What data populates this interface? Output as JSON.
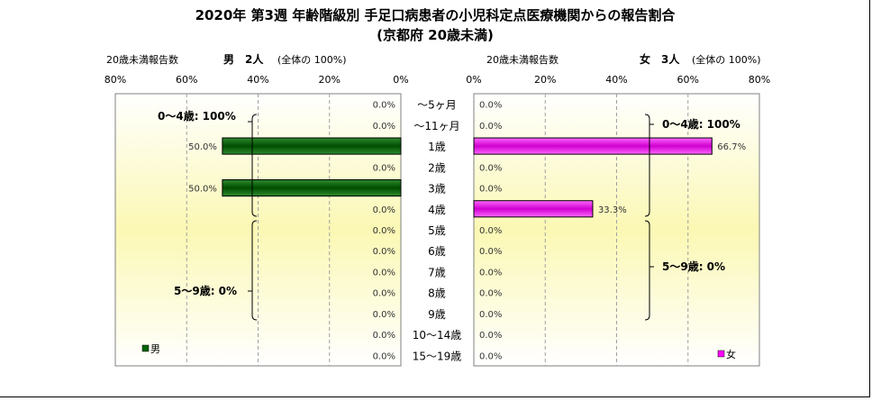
{
  "title": {
    "line1": "2020年 第3週 年齢階級別 手足口病患者の小児科定点医療機関からの報告割合",
    "line2": "(京都府 20歳未満)"
  },
  "colors": {
    "male": "#006400",
    "female": "#ff00ff",
    "grid": "#808080"
  },
  "chart_data": [
    {
      "type": "bar",
      "orientation": "horizontal-reversed",
      "header_label": "20歳未満報告数",
      "header_sex": "男",
      "header_count": "2人",
      "header_total": "(全体の 100%)",
      "legend": "男",
      "xlim": [
        0,
        80
      ],
      "ticks": [
        "80%",
        "60%",
        "40%",
        "20%",
        "0%"
      ],
      "tick_values": [
        80,
        60,
        40,
        20,
        0
      ],
      "categories": [
        "～5ヶ月",
        "～11ヶ月",
        "1歳",
        "2歳",
        "3歳",
        "4歳",
        "5歳",
        "6歳",
        "7歳",
        "8歳",
        "9歳",
        "10～14歳",
        "15～19歳"
      ],
      "values": [
        0.0,
        0.0,
        50.0,
        0.0,
        50.0,
        0.0,
        0.0,
        0.0,
        0.0,
        0.0,
        0.0,
        0.0,
        0.0
      ],
      "value_labels": [
        "0.0%",
        "0.0%",
        "50.0%",
        "0.0%",
        "50.0%",
        "0.0%",
        "0.0%",
        "0.0%",
        "0.0%",
        "0.0%",
        "0.0%",
        "0.0%",
        "0.0%"
      ],
      "group_labels": [
        "0～4歳: 100%",
        "5～9歳: 0%"
      ]
    },
    {
      "type": "bar",
      "orientation": "horizontal",
      "header_label": "20歳未満報告数",
      "header_sex": "女",
      "header_count": "3人",
      "header_total": "(全体の 100%)",
      "legend": "女",
      "xlim": [
        0,
        80
      ],
      "ticks": [
        "0%",
        "20%",
        "40%",
        "60%",
        "80%"
      ],
      "tick_values": [
        0,
        20,
        40,
        60,
        80
      ],
      "categories": [
        "～5ヶ月",
        "～11ヶ月",
        "1歳",
        "2歳",
        "3歳",
        "4歳",
        "5歳",
        "6歳",
        "7歳",
        "8歳",
        "9歳",
        "10～14歳",
        "15～19歳"
      ],
      "values": [
        0.0,
        0.0,
        66.7,
        0.0,
        0.0,
        33.3,
        0.0,
        0.0,
        0.0,
        0.0,
        0.0,
        0.0,
        0.0
      ],
      "value_labels": [
        "0.0%",
        "0.0%",
        "66.7%",
        "0.0%",
        "0.0%",
        "33.3%",
        "0.0%",
        "0.0%",
        "0.0%",
        "0.0%",
        "0.0%",
        "0.0%",
        "0.0%"
      ],
      "group_labels": [
        "0～4歳: 100%",
        "5～9歳: 0%"
      ]
    }
  ]
}
